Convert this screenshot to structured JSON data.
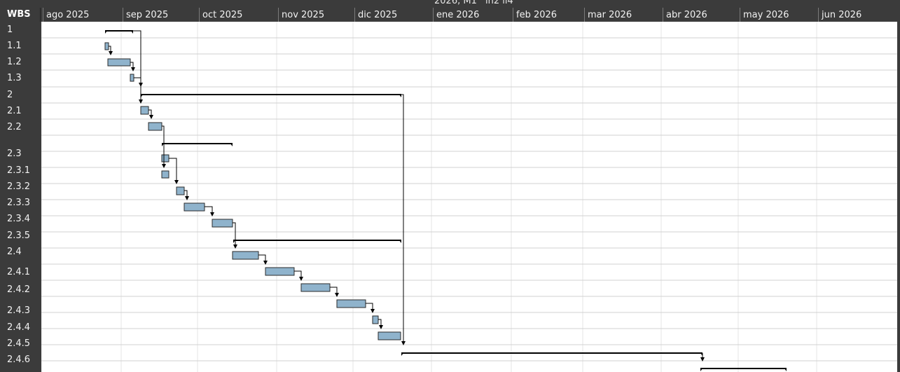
{
  "header": {
    "wbs_label": "WBS",
    "top_fragment_1": "2026, M1",
    "top_fragment_2": "ïn2 ïï4"
  },
  "timeline": {
    "months": [
      "ago 2025",
      "sep 2025",
      "oct 2025",
      "nov 2025",
      "dic 2025",
      "ene 2026",
      "feb 2026",
      "mar 2026",
      "abr 2026",
      "may 2026",
      "jun 2026"
    ]
  },
  "rows": [
    {
      "wbs": "1"
    },
    {
      "wbs": "1.1"
    },
    {
      "wbs": "1.2"
    },
    {
      "wbs": "1.3"
    },
    {
      "wbs": "2"
    },
    {
      "wbs": "2.1"
    },
    {
      "wbs": "2.2"
    },
    {
      "wbs": "2.3"
    },
    {
      "wbs": "2.3.1"
    },
    {
      "wbs": "2.3.2"
    },
    {
      "wbs": "2.3.3"
    },
    {
      "wbs": "2.3.4"
    },
    {
      "wbs": "2.3.5"
    },
    {
      "wbs": "2.4"
    },
    {
      "wbs": "2.4.1"
    },
    {
      "wbs": "2.4.2"
    },
    {
      "wbs": "2.4.3"
    },
    {
      "wbs": "2.4.4"
    },
    {
      "wbs": "2.4.5"
    },
    {
      "wbs": "2.4.6"
    }
  ],
  "colors": {
    "task_fill": "#8fb3cc",
    "task_border": "#2b2b2b",
    "grid_line": "#d0d0d0",
    "summary": "#000000",
    "chrome": "#3b3b3b"
  }
}
